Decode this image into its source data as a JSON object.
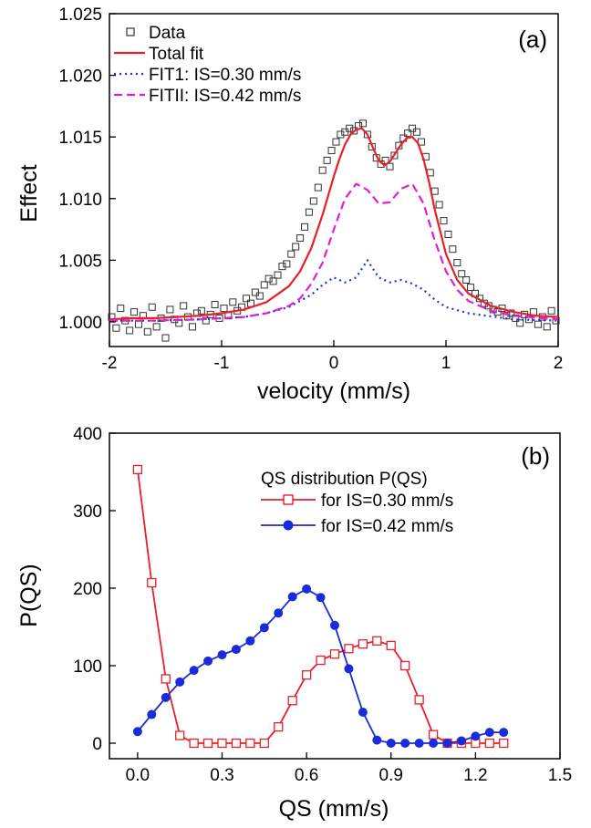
{
  "chart_data": [
    {
      "type": "scatter",
      "panel_label": "(a)",
      "xlabel": "velocity (mm/s)",
      "ylabel": "Effect",
      "xlim": [
        -2,
        2
      ],
      "ylim": [
        0.998,
        1.025
      ],
      "xticks": [
        -2,
        -1,
        0,
        1,
        2
      ],
      "xtick_labels": [
        "-2",
        "-1",
        "0",
        "1",
        "2"
      ],
      "yticks": [
        1.0,
        1.005,
        1.01,
        1.015,
        1.02,
        1.025
      ],
      "ytick_labels": [
        "1.000",
        "1.005",
        "1.010",
        "1.015",
        "1.020",
        "1.025"
      ],
      "grid": false,
      "legend_position": "top-left",
      "series": [
        {
          "name": "Data",
          "style": "open-square",
          "color": "#333333",
          "x": [
            -1.98,
            -1.94,
            -1.9,
            -1.86,
            -1.82,
            -1.78,
            -1.74,
            -1.7,
            -1.66,
            -1.62,
            -1.58,
            -1.54,
            -1.5,
            -1.46,
            -1.42,
            -1.38,
            -1.34,
            -1.3,
            -1.26,
            -1.22,
            -1.18,
            -1.14,
            -1.1,
            -1.06,
            -1.02,
            -0.98,
            -0.94,
            -0.9,
            -0.86,
            -0.82,
            -0.78,
            -0.74,
            -0.7,
            -0.66,
            -0.62,
            -0.58,
            -0.54,
            -0.5,
            -0.46,
            -0.42,
            -0.38,
            -0.34,
            -0.3,
            -0.26,
            -0.22,
            -0.18,
            -0.14,
            -0.1,
            -0.06,
            -0.02,
            0.02,
            0.06,
            0.1,
            0.14,
            0.18,
            0.22,
            0.26,
            0.3,
            0.34,
            0.38,
            0.42,
            0.46,
            0.5,
            0.54,
            0.58,
            0.62,
            0.66,
            0.7,
            0.74,
            0.78,
            0.82,
            0.86,
            0.9,
            0.94,
            0.98,
            1.02,
            1.06,
            1.1,
            1.14,
            1.18,
            1.22,
            1.26,
            1.3,
            1.34,
            1.38,
            1.42,
            1.46,
            1.5,
            1.54,
            1.58,
            1.62,
            1.66,
            1.7,
            1.74,
            1.78,
            1.82,
            1.86,
            1.9,
            1.94,
            1.98
          ],
          "y": [
            1.0004,
            0.9995,
            1.0011,
            1.0001,
            0.9993,
            1.0008,
            0.9998,
            1.0005,
            0.9992,
            1.0012,
            0.9996,
            1.0003,
            0.9987,
            1.001,
            1.0002,
            0.9999,
            1.0013,
            1.0004,
            0.9996,
            1.0007,
            1.0009,
            1.0001,
            1.0006,
            1.0014,
            1.0003,
            1.0011,
            1.0005,
            1.0016,
            1.0009,
            1.0012,
            1.0019,
            1.0015,
            1.0024,
            1.0021,
            1.003,
            1.0035,
            1.0033,
            1.0038,
            1.0045,
            1.0047,
            1.0055,
            1.0061,
            1.0068,
            1.0077,
            1.0089,
            1.0098,
            1.0109,
            1.0123,
            1.0131,
            1.0139,
            1.0146,
            1.0152,
            1.0154,
            1.0157,
            1.0155,
            1.0159,
            1.0161,
            1.0152,
            1.0142,
            1.0133,
            1.0128,
            1.0131,
            1.0126,
            1.0135,
            1.0143,
            1.0149,
            1.0153,
            1.0157,
            1.0154,
            1.0146,
            1.0134,
            1.0121,
            1.0106,
            1.0095,
            1.0082,
            1.0071,
            1.0059,
            1.0048,
            1.0039,
            1.0034,
            1.0028,
            1.0023,
            1.0019,
            1.0015,
            1.0013,
            1.001,
            1.0008,
            1.0011,
            1.0005,
            1.0007,
            1.0003,
            0.9999,
            1.0006,
            1.0002,
            1.0008,
            0.9998,
            1.0004,
            0.9996,
            1.0009,
            1.0001
          ]
        },
        {
          "name": "Total fit",
          "style": "solid",
          "color": "#e8202a",
          "x": [
            -2.0,
            -1.8,
            -1.6,
            -1.4,
            -1.2,
            -1.0,
            -0.8,
            -0.6,
            -0.4,
            -0.3,
            -0.2,
            -0.1,
            0.0,
            0.05,
            0.1,
            0.15,
            0.2,
            0.25,
            0.3,
            0.35,
            0.4,
            0.45,
            0.5,
            0.55,
            0.6,
            0.65,
            0.7,
            0.75,
            0.8,
            0.85,
            0.9,
            1.0,
            1.1,
            1.2,
            1.4,
            1.6,
            1.8,
            2.0
          ],
          "y": [
            1.0002,
            1.0003,
            1.0003,
            1.0004,
            1.0005,
            1.0007,
            1.001,
            1.0016,
            1.0029,
            1.0041,
            1.006,
            1.0087,
            1.0118,
            1.0132,
            1.0144,
            1.0152,
            1.0156,
            1.0157,
            1.0152,
            1.0141,
            1.0131,
            1.0127,
            1.013,
            1.0137,
            1.0144,
            1.0149,
            1.015,
            1.0145,
            1.0132,
            1.0113,
            1.0091,
            1.0055,
            1.0034,
            1.0023,
            1.0013,
            1.0008,
            1.0005,
            1.0004
          ]
        },
        {
          "name": "FIT1: IS=0.30 mm/s",
          "style": "dotted",
          "color": "#1f2fe0",
          "x": [
            -2.0,
            -1.6,
            -1.2,
            -0.8,
            -0.6,
            -0.4,
            -0.2,
            -0.1,
            0.0,
            0.1,
            0.2,
            0.3,
            0.4,
            0.5,
            0.6,
            0.7,
            0.8,
            0.9,
            1.0,
            1.2,
            1.6,
            2.0
          ],
          "y": [
            1.0001,
            1.0001,
            1.0002,
            1.0004,
            1.0007,
            1.0012,
            1.0022,
            1.003,
            1.0036,
            1.0032,
            1.0036,
            1.005,
            1.0036,
            1.0032,
            1.0034,
            1.0031,
            1.0026,
            1.0018,
            1.0012,
            1.0007,
            1.0002,
            1.0001
          ]
        },
        {
          "name": "FITII: IS=0.42 mm/s",
          "style": "dashed",
          "color": "#e020d0",
          "x": [
            -2.0,
            -1.6,
            -1.2,
            -0.8,
            -0.6,
            -0.4,
            -0.3,
            -0.2,
            -0.1,
            0.0,
            0.1,
            0.2,
            0.3,
            0.4,
            0.5,
            0.6,
            0.7,
            0.8,
            0.9,
            1.0,
            1.1,
            1.2,
            1.4,
            1.6,
            2.0
          ],
          "y": [
            1.0001,
            1.0001,
            1.0002,
            1.0004,
            1.0007,
            1.0013,
            1.0019,
            1.0031,
            1.0048,
            1.0075,
            1.01,
            1.0112,
            1.0107,
            1.0096,
            1.0097,
            1.0108,
            1.0112,
            1.0096,
            1.0066,
            1.0041,
            1.0026,
            1.0017,
            1.0009,
            1.0005,
            1.0002
          ]
        }
      ]
    },
    {
      "type": "line",
      "panel_label": "(b)",
      "xlabel": "QS (mm/s)",
      "ylabel": "P(QS)",
      "xlim": [
        -0.1,
        1.5
      ],
      "ylim": [
        -20,
        400
      ],
      "xticks": [
        0.0,
        0.3,
        0.6,
        0.9,
        1.2,
        1.5
      ],
      "xtick_labels": [
        "0.0",
        "0.3",
        "0.6",
        "0.9",
        "1.2",
        "1.5"
      ],
      "yticks": [
        0,
        100,
        200,
        300,
        400
      ],
      "ytick_labels": [
        "0",
        "100",
        "200",
        "300",
        "400"
      ],
      "grid": false,
      "legend_title": "QS distribution P(QS)",
      "legend_position": "top-right",
      "series": [
        {
          "name": "for IS=0.30 mm/s",
          "marker": "open-square",
          "color": "#e8202a",
          "x": [
            0.0,
            0.05,
            0.1,
            0.15,
            0.2,
            0.25,
            0.3,
            0.35,
            0.4,
            0.45,
            0.5,
            0.55,
            0.6,
            0.65,
            0.7,
            0.75,
            0.8,
            0.85,
            0.9,
            0.95,
            1.0,
            1.05,
            1.1,
            1.15,
            1.2,
            1.25,
            1.3
          ],
          "y": [
            353,
            207,
            83,
            10,
            0,
            0,
            0,
            0,
            0,
            0,
            21,
            55,
            88,
            107,
            115,
            122,
            128,
            132,
            126,
            100,
            56,
            11,
            0,
            0,
            0,
            0,
            0
          ]
        },
        {
          "name": "for IS=0.42 mm/s",
          "marker": "filled-circle",
          "color": "#1a2bd8",
          "x": [
            0.0,
            0.05,
            0.1,
            0.15,
            0.2,
            0.25,
            0.3,
            0.35,
            0.4,
            0.45,
            0.5,
            0.55,
            0.6,
            0.65,
            0.7,
            0.75,
            0.8,
            0.85,
            0.9,
            0.95,
            1.0,
            1.05,
            1.1,
            1.15,
            1.2,
            1.25,
            1.3
          ],
          "y": [
            15,
            37,
            59,
            79,
            94,
            106,
            114,
            121,
            132,
            149,
            168,
            189,
            199,
            188,
            152,
            96,
            40,
            4,
            0,
            0,
            0,
            0,
            0,
            3,
            9,
            14,
            14
          ]
        }
      ]
    }
  ]
}
